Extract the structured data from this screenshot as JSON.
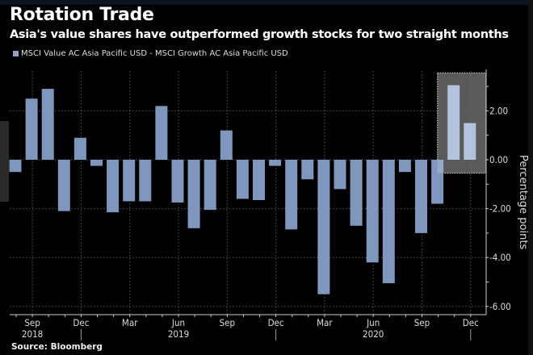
{
  "header": {
    "title": "Rotation Trade",
    "subtitle": "Asia's value shares have outperformed growth stocks for two straight months"
  },
  "legend": {
    "label": "MSCI Value AC Asia Pacific USD - MSCI Growth AC Asia Pacific USD",
    "color": "#8ea5c8"
  },
  "footer": {
    "source": "Source: Bloomberg"
  },
  "colors": {
    "bar": "#7f97bd",
    "highlight_bar": "#b4c3dd",
    "highlight_box": "#6a6a6a",
    "grid": "#555555",
    "axis": "#cccccc"
  },
  "chart_data": {
    "type": "bar",
    "title": "Rotation Trade",
    "subtitle": "Asia's value shares have outperformed growth stocks for two straight months",
    "xlabel": "",
    "ylabel": "Percentage points",
    "ylim": [
      -6.6,
      3.6
    ],
    "yticks": [
      2.0,
      0.0,
      -2.0,
      -4.0,
      -6.0
    ],
    "ytick_labels": [
      "2.00",
      "0.00",
      "-2.00",
      "-4.00",
      "-6.00"
    ],
    "grid": true,
    "legend_position": "top-left",
    "categories": [
      "Aug 2018",
      "Sep 2018",
      "Oct 2018",
      "Nov 2018",
      "Dec 2018",
      "Jan 2019",
      "Feb 2019",
      "Mar 2019",
      "Apr 2019",
      "May 2019",
      "Jun 2019",
      "Jul 2019",
      "Aug 2019",
      "Sep 2019",
      "Oct 2019",
      "Nov 2019",
      "Dec 2019",
      "Jan 2020",
      "Feb 2020",
      "Mar 2020",
      "Apr 2020",
      "May 2020",
      "Jun 2020",
      "Jul 2020",
      "Aug 2020",
      "Sep 2020",
      "Oct 2020",
      "Nov 2020",
      "Dec 2020"
    ],
    "series": [
      {
        "name": "MSCI Value AC Asia Pacific USD - MSCI Growth AC Asia Pacific USD",
        "values": [
          -0.5,
          2.5,
          2.9,
          -2.1,
          0.9,
          -0.25,
          -2.15,
          -1.7,
          -1.7,
          2.2,
          -1.75,
          -2.8,
          -2.05,
          1.2,
          -1.6,
          -1.65,
          -0.25,
          -2.85,
          -0.8,
          -5.5,
          -1.2,
          -2.7,
          -4.2,
          -5.05,
          -0.5,
          -3.0,
          -1.8,
          3.05,
          1.5
        ]
      }
    ],
    "highlighted_categories": [
      "Nov 2020",
      "Dec 2020"
    ],
    "x_tick_labels": [
      {
        "label": "Sep",
        "category": "Sep 2018"
      },
      {
        "label": "Dec",
        "category": "Dec 2018"
      },
      {
        "label": "Mar",
        "category": "Mar 2019"
      },
      {
        "label": "Jun",
        "category": "Jun 2019"
      },
      {
        "label": "Sep",
        "category": "Sep 2019"
      },
      {
        "label": "Dec",
        "category": "Dec 2019"
      },
      {
        "label": "Mar",
        "category": "Mar 2020"
      },
      {
        "label": "Jun",
        "category": "Jun 2020"
      },
      {
        "label": "Sep",
        "category": "Sep 2020"
      },
      {
        "label": "Dec",
        "category": "Dec 2020"
      }
    ],
    "year_labels": [
      {
        "label": "2018",
        "category": "Sep 2018"
      },
      {
        "label": "2019",
        "category": "Jun 2019"
      },
      {
        "label": "2020",
        "category": "Jun 2020"
      }
    ]
  }
}
